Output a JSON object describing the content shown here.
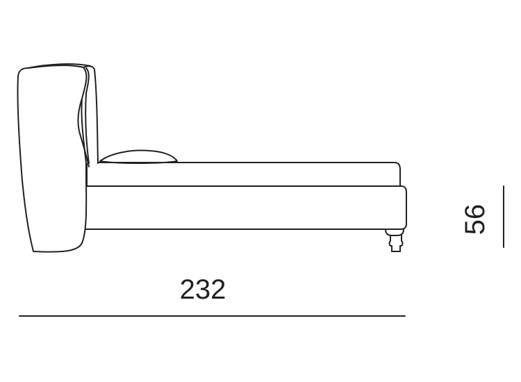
{
  "dimensions": {
    "length": "232",
    "height": "56"
  }
}
